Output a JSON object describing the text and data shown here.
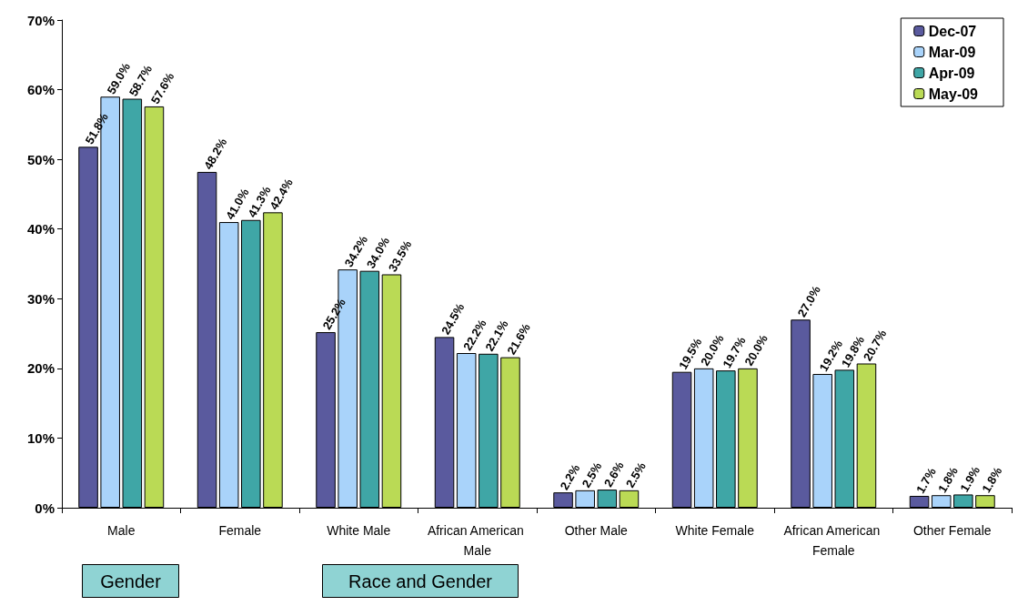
{
  "chart_data": {
    "type": "bar",
    "categories": [
      "Male",
      "Female",
      "White Male",
      "African American Male",
      "Other Male",
      "White Female",
      "African American Female",
      "Other Female"
    ],
    "series": [
      {
        "name": "Dec-07",
        "color": "#5a5a9e",
        "values": [
          51.8,
          48.2,
          25.2,
          24.5,
          2.2,
          19.5,
          27.0,
          1.7
        ],
        "value_labels": [
          "51.8%",
          "48.2%",
          "25.2%",
          "24.5%",
          "2.2%",
          "19.5%",
          "27.0%",
          "1.7%"
        ]
      },
      {
        "name": "Mar-09",
        "color": "#a9d3fa",
        "values": [
          59.0,
          41.0,
          34.2,
          22.2,
          2.5,
          20.0,
          19.2,
          1.8
        ],
        "value_labels": [
          "59.0%",
          "41.0%",
          "34.2%",
          "22.2%",
          "2.5%",
          "20.0%",
          "19.2%",
          "1.8%"
        ]
      },
      {
        "name": "Apr-09",
        "color": "#3fa6a6",
        "values": [
          58.7,
          41.3,
          34.0,
          22.1,
          2.6,
          19.7,
          19.8,
          1.9
        ],
        "value_labels": [
          "58.7%",
          "41.3%",
          "34.0%",
          "22.1%",
          "2.6%",
          "19.7%",
          "19.8%",
          "1.9%"
        ]
      },
      {
        "name": "May-09",
        "color": "#bada55",
        "values": [
          57.6,
          42.4,
          33.5,
          21.6,
          2.5,
          20.0,
          20.7,
          1.8
        ],
        "value_labels": [
          "57.6%",
          "42.4%",
          "33.5%",
          "21.6%",
          "2.5%",
          "20.0%",
          "20.7%",
          "1.8%"
        ]
      }
    ],
    "ylim": [
      0,
      70
    ],
    "yticks": [
      {
        "value": 0,
        "label": "0%"
      },
      {
        "value": 10,
        "label": "10%"
      },
      {
        "value": 20,
        "label": "20%"
      },
      {
        "value": 30,
        "label": "30%"
      },
      {
        "value": 40,
        "label": "40%"
      },
      {
        "value": 50,
        "label": "50%"
      },
      {
        "value": 60,
        "label": "60%"
      },
      {
        "value": 70,
        "label": "70%"
      }
    ],
    "grid": false,
    "legend": "top right",
    "annotations": [
      "Gender",
      "Race and Gender"
    ]
  }
}
